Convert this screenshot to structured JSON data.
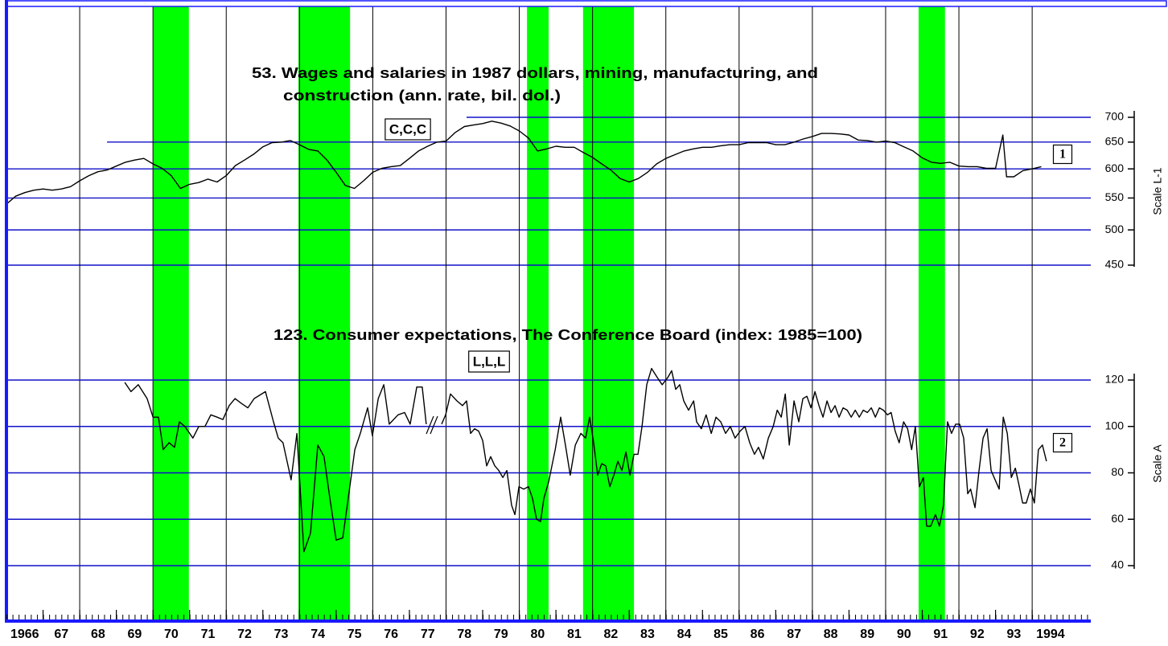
{
  "chart_data": [
    {
      "type": "line",
      "title": [
        "53. Wages and salaries in 1987 dollars, mining, manufacturing, and",
        "construction (ann. rate, bil. dol.)"
      ],
      "annotation": "C,C,C",
      "y_label": "Scale L-1",
      "yscale": "log",
      "xlim": [
        1966,
        1995.6
      ],
      "ylim": [
        450,
        700
      ],
      "yticks": [
        450,
        500,
        550,
        600,
        650,
        700
      ],
      "grid": true,
      "grid_color": "#1010c8",
      "shaded_periods": [
        [
          1970.0,
          1970.98
        ],
        [
          1973.97,
          1975.38
        ],
        [
          1980.21,
          1980.8
        ],
        [
          1981.74,
          1983.13
        ],
        [
          1990.9,
          1991.62
        ]
      ],
      "shade_color": "#00ff00",
      "series": [
        {
          "name": "1",
          "color": "#000000",
          "x": [
            1966,
            1966.25,
            1966.5,
            1966.75,
            1967,
            1967.25,
            1967.5,
            1967.75,
            1968,
            1968.25,
            1968.5,
            1968.75,
            1969,
            1969.25,
            1969.5,
            1969.75,
            1970,
            1970.25,
            1970.5,
            1970.75,
            1971,
            1971.25,
            1971.5,
            1971.75,
            1972,
            1972.25,
            1972.5,
            1972.75,
            1973,
            1973.25,
            1973.5,
            1973.75,
            1974,
            1974.25,
            1974.5,
            1974.75,
            1975,
            1975.25,
            1975.5,
            1975.75,
            1976,
            1976.25,
            1976.5,
            1976.75,
            1977,
            1977.25,
            1977.5,
            1977.75,
            1978,
            1978.25,
            1978.5,
            1978.75,
            1979,
            1979.25,
            1979.5,
            1979.75,
            1980,
            1980.25,
            1980.5,
            1980.75,
            1981,
            1981.25,
            1981.5,
            1981.75,
            1982,
            1982.25,
            1982.5,
            1982.75,
            1983,
            1983.25,
            1983.5,
            1983.75,
            1984,
            1984.25,
            1984.5,
            1984.75,
            1985,
            1985.25,
            1985.5,
            1985.75,
            1986,
            1986.25,
            1986.5,
            1986.75,
            1987,
            1987.25,
            1987.5,
            1987.75,
            1988,
            1988.25,
            1988.5,
            1988.75,
            1989,
            1989.25,
            1989.5,
            1989.75,
            1990,
            1990.25,
            1990.5,
            1990.75,
            1991,
            1991.25,
            1991.5,
            1991.75,
            1992,
            1992.25,
            1992.5,
            1992.75,
            1993,
            1993.2,
            1993.3,
            1993.5,
            1993.75,
            1994,
            1994.25
          ],
          "values": [
            540,
            553,
            559,
            563,
            565,
            563,
            565,
            569,
            579,
            588,
            595,
            598,
            605,
            612,
            616,
            619,
            609,
            601,
            588,
            566,
            573,
            576,
            582,
            577,
            588,
            606,
            616,
            627,
            641,
            649,
            650,
            653,
            645,
            636,
            633,
            616,
            594,
            571,
            566,
            579,
            594,
            601,
            604,
            606,
            619,
            633,
            642,
            650,
            652,
            669,
            681,
            684,
            687,
            692,
            688,
            682,
            672,
            658,
            633,
            637,
            642,
            640,
            640,
            630,
            621,
            609,
            598,
            583,
            577,
            583,
            594,
            609,
            619,
            626,
            633,
            637,
            640,
            640,
            643,
            645,
            645,
            649,
            649,
            649,
            645,
            645,
            650,
            656,
            661,
            667,
            667,
            666,
            664,
            654,
            653,
            650,
            652,
            649,
            641,
            633,
            620,
            612,
            610,
            612,
            605,
            604,
            604,
            601,
            601,
            664,
            586,
            586,
            597,
            600,
            604
          ]
        }
      ]
    },
    {
      "type": "line",
      "title": "123. Consumer expectations, The Conference Board (index: 1985=100)",
      "annotation": "L,L,L",
      "y_label": "Scale A",
      "yscale": "linear",
      "xlim": [
        1966,
        1995.6
      ],
      "ylim": [
        40,
        120
      ],
      "yticks": [
        40,
        60,
        80,
        100,
        120
      ],
      "xticks": [
        1966,
        {
          "value": 1967,
          "label": "67"
        },
        {
          "value": 1968,
          "label": "68"
        },
        {
          "value": 1969,
          "label": "69"
        },
        {
          "value": 1970,
          "label": "70"
        },
        {
          "value": 1971,
          "label": "71"
        },
        {
          "value": 1972,
          "label": "72"
        },
        {
          "value": 1973,
          "label": "73"
        },
        {
          "value": 1974,
          "label": "74"
        },
        {
          "value": 1975,
          "label": "75"
        },
        {
          "value": 1976,
          "label": "76"
        },
        {
          "value": 1977,
          "label": "77"
        },
        {
          "value": 1978,
          "label": "78"
        },
        {
          "value": 1979,
          "label": "79"
        },
        {
          "value": 1980,
          "label": "80"
        },
        {
          "value": 1981,
          "label": "81"
        },
        {
          "value": 1982,
          "label": "82"
        },
        {
          "value": 1983,
          "label": "83"
        },
        {
          "value": 1984,
          "label": "84"
        },
        {
          "value": 1985,
          "label": "85"
        },
        {
          "value": 1986,
          "label": "86"
        },
        {
          "value": 1987,
          "label": "87"
        },
        {
          "value": 1988,
          "label": "88"
        },
        {
          "value": 1989,
          "label": "89"
        },
        {
          "value": 1990,
          "label": "90"
        },
        {
          "value": 1991,
          "label": "91"
        },
        {
          "value": 1992,
          "label": "92"
        },
        {
          "value": 1993,
          "label": "93"
        },
        1994
      ],
      "grid": true,
      "grid_color": "#1010c8",
      "series": [
        {
          "name": "2",
          "color": "#000000",
          "x": [
            1969.23,
            1969.4,
            1969.6,
            1969.84,
            1970.0,
            1970.15,
            1970.28,
            1970.44,
            1970.59,
            1970.72,
            1970.87,
            1971.09,
            1971.25,
            1971.42,
            1971.58,
            1971.75,
            1971.91,
            1972.08,
            1972.24,
            1972.41,
            1972.59,
            1972.76,
            1973.07,
            1973.29,
            1973.42,
            1973.55,
            1973.77,
            1973.93,
            1974.12,
            1974.3,
            1974.5,
            1974.67,
            1974.83,
            1975.0,
            1975.18,
            1975.33,
            1975.51,
            1975.66,
            1975.86,
            1975.99,
            1976.15,
            1976.3,
            1976.45,
            1976.69,
            1976.87,
            1977.02,
            1977.2,
            1977.35,
            1977.46,
            1977.67,
            1977.88,
            1977.99,
            1978.12,
            1978.3,
            1978.45,
            1978.56,
            1978.67,
            1978.78,
            1978.89,
            1979.0,
            1979.11,
            1979.22,
            1979.33,
            1979.44,
            1979.55,
            1979.66,
            1979.79,
            1979.88,
            1979.99,
            1980.12,
            1980.25,
            1980.36,
            1980.47,
            1980.58,
            1980.67,
            1980.8,
            1980.98,
            1981.13,
            1981.26,
            1981.39,
            1981.53,
            1981.68,
            1981.81,
            1981.92,
            1982.03,
            1982.14,
            1982.25,
            1982.36,
            1982.47,
            1982.58,
            1982.69,
            1982.8,
            1982.91,
            1983.02,
            1983.13,
            1983.24,
            1983.35,
            1983.48,
            1983.61,
            1983.77,
            1983.9,
            1984.05,
            1984.16,
            1984.27,
            1984.38,
            1984.49,
            1984.62,
            1984.76,
            1984.84,
            1984.97,
            1985.1,
            1985.24,
            1985.37,
            1985.5,
            1985.63,
            1985.76,
            1985.89,
            1986.03,
            1986.16,
            1986.29,
            1986.42,
            1986.53,
            1986.66,
            1986.8,
            1986.93,
            1987.04,
            1987.15,
            1987.26,
            1987.37,
            1987.5,
            1987.63,
            1987.74,
            1987.85,
            1987.96,
            1988.07,
            1988.18,
            1988.29,
            1988.4,
            1988.51,
            1988.62,
            1988.73,
            1988.84,
            1988.95,
            1989.06,
            1989.17,
            1989.28,
            1989.39,
            1989.5,
            1989.61,
            1989.72,
            1989.83,
            1989.94,
            1990.05,
            1990.15,
            1990.26,
            1990.37,
            1990.49,
            1990.6,
            1990.71,
            1990.81,
            1990.92,
            1991.03,
            1991.12,
            1991.23,
            1991.36,
            1991.47,
            1991.58,
            1991.69,
            1991.8,
            1991.91,
            1992.02,
            1992.13,
            1992.24,
            1992.32,
            1992.44,
            1992.55,
            1992.66,
            1992.77,
            1992.88,
            1992.99,
            1993.1,
            1993.21,
            1993.32,
            1993.43,
            1993.54,
            1993.65,
            1993.74,
            1993.84,
            1993.95,
            1994.06,
            1994.17,
            1994.28,
            1994.39
          ],
          "values": [
            119,
            115,
            118,
            112,
            104,
            104,
            90,
            93,
            91,
            102,
            100,
            95,
            100,
            100,
            105,
            104,
            103,
            109,
            112,
            110,
            108,
            112,
            115,
            102,
            95,
            93,
            77,
            97,
            46,
            54,
            92,
            87,
            69,
            51,
            52,
            69,
            90,
            97,
            108,
            96,
            112,
            118,
            101,
            105,
            106,
            101,
            117,
            117,
            101,
            null,
            101,
            105,
            114,
            111,
            109,
            111,
            97,
            99,
            98,
            94,
            83,
            87,
            83,
            81,
            78,
            81,
            66,
            62,
            74,
            73,
            74,
            69,
            60,
            59,
            69,
            76,
            90,
            104,
            92,
            79,
            92,
            97,
            95,
            104,
            93,
            79,
            84,
            83,
            74,
            79,
            85,
            81,
            89,
            79,
            88,
            88,
            100,
            118,
            125,
            121,
            118,
            121,
            124,
            116,
            118,
            111,
            107,
            111,
            102,
            99,
            105,
            97,
            104,
            102,
            97,
            100,
            95,
            98,
            100,
            93,
            88,
            91,
            86,
            95,
            100,
            107,
            104,
            114,
            92,
            111,
            102,
            112,
            113,
            108,
            115,
            109,
            104,
            111,
            106,
            109,
            104,
            108,
            107,
            104,
            107,
            104,
            107,
            106,
            108,
            104,
            108,
            107,
            105,
            106,
            98,
            93,
            102,
            99,
            90,
            100,
            74,
            78,
            57,
            57,
            62,
            57,
            66,
            102,
            97,
            101,
            101,
            95,
            71,
            73,
            65,
            81,
            95,
            99,
            81,
            77,
            73,
            104,
            97,
            78,
            82,
            74,
            67,
            67,
            73,
            67,
            90,
            92,
            85
          ]
        }
      ]
    }
  ]
}
